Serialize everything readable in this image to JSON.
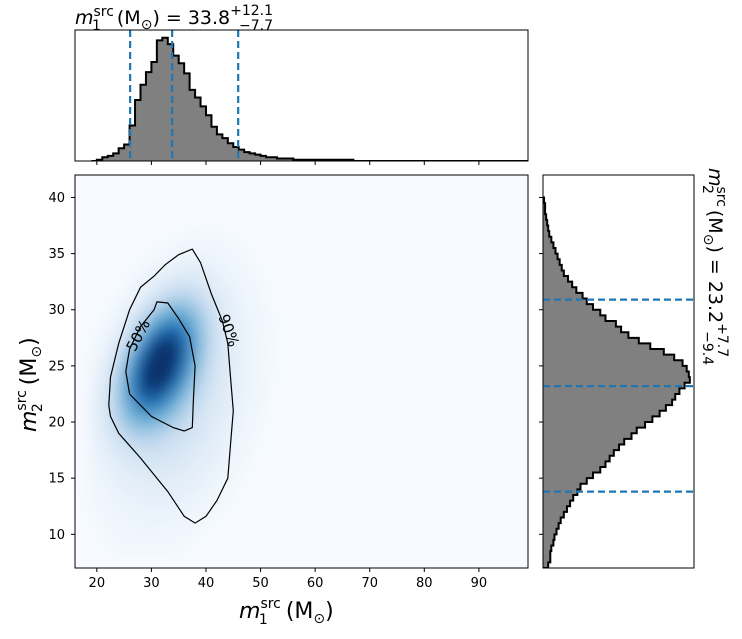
{
  "chart_data": [
    {
      "type": "heatmap",
      "panel": "joint",
      "xlabel": "m_1^src (M_⊙)",
      "ylabel": "m_2^src (M_⊙)",
      "xlabel_text": {
        "var": "m",
        "sub": "1",
        "sup": "src",
        "unit": "(M",
        "unit_sub": "⊙",
        "close": ")"
      },
      "ylabel_text": {
        "var": "m",
        "sub": "2",
        "sup": "src",
        "unit": "(M",
        "unit_sub": "⊙",
        "close": ")"
      },
      "xlim": [
        16,
        99
      ],
      "ylim": [
        7,
        42
      ],
      "xticks": [
        "20",
        "30",
        "40",
        "50",
        "60",
        "70",
        "80",
        "90"
      ],
      "yticks": [
        "10",
        "15",
        "20",
        "25",
        "30",
        "35",
        "40"
      ],
      "density_peak": {
        "x": 31,
        "y": 25
      },
      "colormap": [
        "#f7fbff",
        "#c6dbef",
        "#6baed6",
        "#2171b5",
        "#08306b"
      ],
      "contours": [
        {
          "label": "50%",
          "points": [
            [
              31,
              30.7
            ],
            [
              33,
              30.6
            ],
            [
              35,
              29.2
            ],
            [
              37,
              27.6
            ],
            [
              38,
              25
            ],
            [
              37.7,
              22
            ],
            [
              37.5,
              19.5
            ],
            [
              36,
              19.2
            ],
            [
              34,
              19.5
            ],
            [
              30,
              20.5
            ],
            [
              26,
              22.5
            ],
            [
              25.3,
              24.5
            ],
            [
              26,
              26.5
            ],
            [
              28,
              28.5
            ],
            [
              30.5,
              30
            ]
          ]
        },
        {
          "label": "90%",
          "points": [
            [
              35,
              34.9
            ],
            [
              37.5,
              35.4
            ],
            [
              39,
              34.2
            ],
            [
              41,
              31.4
            ],
            [
              43,
              29
            ],
            [
              44,
              27
            ],
            [
              44.5,
              24
            ],
            [
              45,
              21
            ],
            [
              44.5,
              18
            ],
            [
              44,
              15
            ],
            [
              42,
              13
            ],
            [
              40,
              11.6
            ],
            [
              38,
              11
            ],
            [
              36,
              11.6
            ],
            [
              33,
              13.8
            ],
            [
              28,
              16.8
            ],
            [
              24,
              19
            ],
            [
              22.5,
              20.5
            ],
            [
              22.2,
              21.5
            ],
            [
              22.5,
              24
            ],
            [
              24,
              27
            ],
            [
              26,
              30
            ],
            [
              28,
              32
            ],
            [
              30.5,
              33
            ],
            [
              32.5,
              34
            ]
          ]
        }
      ]
    },
    {
      "type": "bar",
      "panel": "marginal-top",
      "title_text": {
        "var": "m",
        "sub": "1",
        "sup": "src",
        "unit": "(M",
        "unit_sub": "⊙",
        "close": ")",
        "eq": "= 33.8",
        "err_plus": "+12.1",
        "err_minus": "−7.7"
      },
      "bin_width": 1,
      "x": [
        19,
        20,
        21,
        22,
        23,
        24,
        25,
        26,
        27,
        28,
        29,
        30,
        31,
        32,
        33,
        34,
        35,
        36,
        37,
        38,
        39,
        40,
        41,
        42,
        43,
        44,
        45,
        46,
        47,
        48,
        49,
        50,
        51,
        52,
        53,
        54,
        55,
        56,
        57,
        58,
        59,
        60,
        61,
        62,
        63,
        64,
        65,
        66,
        67
      ],
      "values": [
        0,
        1,
        3,
        4,
        6,
        10,
        13,
        28,
        48,
        60,
        70,
        78,
        95,
        97,
        92,
        83,
        77,
        69,
        56,
        50,
        43,
        36,
        27,
        21,
        18,
        14,
        11,
        9,
        7,
        6,
        5,
        4,
        3,
        3,
        2,
        2,
        2,
        1,
        1,
        1,
        1,
        1,
        1,
        1,
        1,
        1,
        1,
        1,
        0
      ],
      "quantile_lines": [
        26.1,
        33.8,
        45.9
      ]
    },
    {
      "type": "bar",
      "panel": "marginal-right",
      "orientation": "horizontal",
      "title_text": {
        "var": "m",
        "sub": "2",
        "sup": "src",
        "unit": "(M",
        "unit_sub": "⊙",
        "close": ")",
        "eq": "= 23.2",
        "err_plus": "+7.7",
        "err_minus": "−9.4"
      },
      "bin_width": 0.5,
      "y": [
        7,
        7.5,
        8,
        8.5,
        9,
        9.5,
        10,
        10.5,
        11,
        11.5,
        12,
        12.5,
        13,
        13.5,
        14,
        14.5,
        15,
        15.5,
        16,
        16.5,
        17,
        17.5,
        18,
        18.5,
        19,
        19.5,
        20,
        20.5,
        21,
        21.5,
        22,
        22.5,
        23,
        23.5,
        24,
        24.5,
        25,
        25.5,
        26,
        26.5,
        27,
        27.5,
        28,
        28.5,
        29,
        29.5,
        30,
        30.5,
        31,
        31.5,
        32,
        32.5,
        33,
        33.5,
        34,
        34.5,
        35,
        35.5,
        36,
        36.5,
        37,
        37.5,
        38,
        38.5,
        39,
        39.5
      ],
      "values": [
        5,
        7,
        7,
        8,
        10,
        11,
        13,
        15,
        17,
        20,
        23,
        26,
        29,
        33,
        36,
        42,
        48,
        55,
        60,
        64,
        68,
        73,
        78,
        85,
        90,
        98,
        105,
        112,
        118,
        124,
        127,
        131,
        136,
        141,
        140,
        138,
        134,
        126,
        116,
        103,
        92,
        82,
        75,
        70,
        60,
        55,
        48,
        42,
        38,
        32,
        28,
        24,
        20,
        18,
        16,
        14,
        12,
        10,
        8,
        6,
        5,
        4,
        3,
        2,
        2,
        1
      ],
      "quantile_lines": [
        13.8,
        23.2,
        30.9
      ]
    }
  ]
}
